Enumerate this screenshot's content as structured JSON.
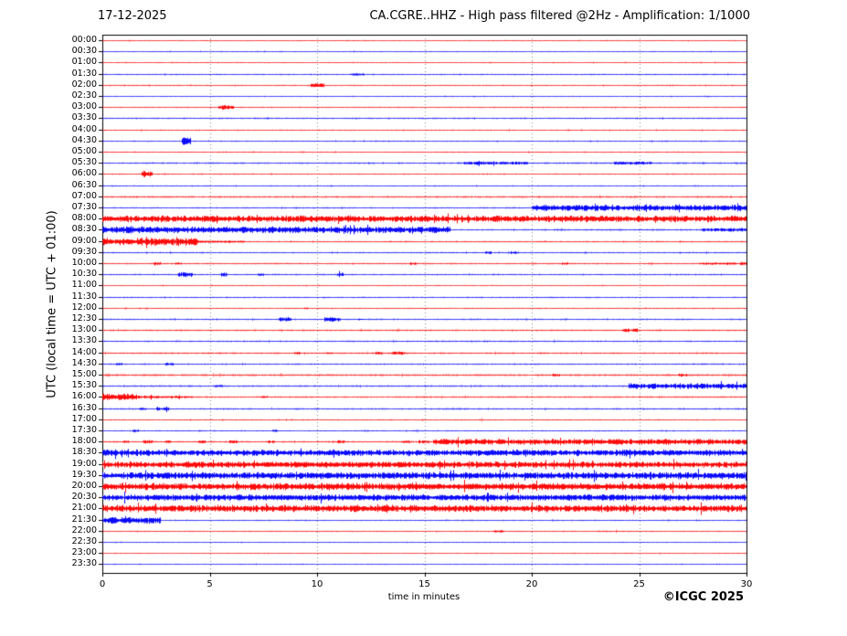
{
  "header": {
    "date": "17-12-2025",
    "title": "CA.CGRE..HHZ - High pass filtered @2Hz - Amplification: 1/1000"
  },
  "axes": {
    "ylabel": "UTC (local time = UTC + 01:00)",
    "xlabel": "time in minutes",
    "xlim": [
      0,
      30
    ],
    "xticks": [
      0,
      5,
      10,
      15,
      20,
      25,
      30
    ],
    "grid_minutes": [
      5,
      10,
      15,
      20,
      25
    ],
    "grid_style": "dashed-vertical"
  },
  "footer": {
    "copyright": "©ICGC 2025"
  },
  "colors": {
    "red": "#ff0000",
    "blue": "#0000ff",
    "grid": "#888888",
    "frame": "#000000",
    "background": "#ffffff"
  },
  "chart_data": {
    "type": "line",
    "subtype": "helicorder-seismogram",
    "station": "CA.CGRE..HHZ",
    "minutes_per_row": 30,
    "row_step": "00:30",
    "amplitude_unit": "px_half_height",
    "rows": [
      {
        "time": "00:00",
        "color": "red",
        "base": 0.5,
        "segments": []
      },
      {
        "time": "00:30",
        "color": "blue",
        "base": 0.5,
        "segments": []
      },
      {
        "time": "01:00",
        "color": "red",
        "base": 0.5,
        "segments": []
      },
      {
        "time": "01:30",
        "color": "blue",
        "base": 0.65,
        "segments": [
          [
            11.5,
            12.2,
            1.1
          ]
        ]
      },
      {
        "time": "02:00",
        "color": "red",
        "base": 0.6,
        "segments": [
          [
            9.7,
            10.3,
            1.8
          ]
        ]
      },
      {
        "time": "02:30",
        "color": "blue",
        "base": 0.5,
        "segments": []
      },
      {
        "time": "03:00",
        "color": "red",
        "base": 0.6,
        "segments": [
          [
            5.4,
            6.1,
            2.2
          ]
        ]
      },
      {
        "time": "03:30",
        "color": "blue",
        "base": 0.7,
        "segments": []
      },
      {
        "time": "04:00",
        "color": "red",
        "base": 0.6,
        "segments": []
      },
      {
        "time": "04:30",
        "color": "blue",
        "base": 0.6,
        "segments": [
          [
            3.7,
            4.1,
            3.4
          ]
        ]
      },
      {
        "time": "05:00",
        "color": "red",
        "base": 0.6,
        "segments": []
      },
      {
        "time": "05:30",
        "color": "blue",
        "base": 0.75,
        "segments": [
          [
            15,
            30,
            0.9
          ],
          [
            16.8,
            19.8,
            1.4
          ],
          [
            23.8,
            25.6,
            1.4
          ]
        ]
      },
      {
        "time": "06:00",
        "color": "red",
        "base": 0.6,
        "segments": [
          [
            1.8,
            2.3,
            3.2
          ]
        ]
      },
      {
        "time": "06:30",
        "color": "blue",
        "base": 0.6,
        "segments": []
      },
      {
        "time": "07:00",
        "color": "red",
        "base": 0.9,
        "segments": []
      },
      {
        "time": "07:30",
        "color": "blue",
        "base": 0.7,
        "segments": [
          [
            20,
            30,
            2.7
          ]
        ]
      },
      {
        "time": "08:00",
        "color": "red",
        "base": 0.7,
        "segments": [
          [
            0,
            30,
            2.8
          ]
        ]
      },
      {
        "time": "08:30",
        "color": "blue",
        "base": 0.7,
        "segments": [
          [
            0,
            16.2,
            2.8
          ],
          [
            21,
            27.9,
            0.9
          ],
          [
            27.9,
            30,
            1.7
          ]
        ]
      },
      {
        "time": "09:00",
        "color": "red",
        "base": 0.7,
        "segments": [
          [
            0,
            4.4,
            3.3
          ],
          [
            4.4,
            6.6,
            1.1
          ]
        ]
      },
      {
        "time": "09:30",
        "color": "blue",
        "base": 0.7,
        "segments": [
          [
            17.8,
            18.1,
            1.3
          ],
          [
            19,
            19.3,
            1.3
          ]
        ]
      },
      {
        "time": "10:00",
        "color": "red",
        "base": 0.75,
        "segments": [
          [
            2.3,
            2.7,
            1.3
          ],
          [
            3.4,
            3.7,
            1.2
          ],
          [
            8,
            8.2,
            1
          ],
          [
            14.3,
            14.6,
            1.3
          ],
          [
            16,
            16.2,
            1
          ],
          [
            21.4,
            21.7,
            1.1
          ],
          [
            25.4,
            25.7,
            1
          ],
          [
            27.8,
            29.6,
            1.2
          ],
          [
            29.7,
            30,
            1.6
          ]
        ]
      },
      {
        "time": "10:30",
        "color": "blue",
        "base": 0.7,
        "segments": [
          [
            3.5,
            4.2,
            2.2
          ],
          [
            5.5,
            5.8,
            1.8
          ],
          [
            7.2,
            7.5,
            1.4
          ],
          [
            8.9,
            9.1,
            1
          ],
          [
            10.9,
            11.2,
            2
          ]
        ]
      },
      {
        "time": "11:00",
        "color": "red",
        "base": 0.5,
        "segments": []
      },
      {
        "time": "11:30",
        "color": "blue",
        "base": 0.65,
        "segments": [
          [
            20.8,
            21.2,
            0.9
          ]
        ]
      },
      {
        "time": "12:00",
        "color": "red",
        "base": 0.6,
        "segments": [
          [
            9.4,
            9.6,
            1.1
          ]
        ]
      },
      {
        "time": "12:30",
        "color": "blue",
        "base": 0.7,
        "segments": [
          [
            8.2,
            8.8,
            2.2
          ],
          [
            10.3,
            11.1,
            2.2
          ],
          [
            11.9,
            12.2,
            1.1
          ],
          [
            21.3,
            21.6,
            1
          ]
        ]
      },
      {
        "time": "13:00",
        "color": "red",
        "base": 0.8,
        "segments": [
          [
            24.2,
            24.9,
            1.8
          ]
        ]
      },
      {
        "time": "13:30",
        "color": "blue",
        "base": 0.75,
        "segments": []
      },
      {
        "time": "14:00",
        "color": "red",
        "base": 0.8,
        "segments": [
          [
            8.9,
            9.2,
            1.2
          ],
          [
            10.4,
            10.7,
            1.2
          ],
          [
            12.7,
            13,
            1.3
          ],
          [
            13.4,
            14.1,
            1.4
          ],
          [
            18.9,
            19.2,
            1
          ]
        ]
      },
      {
        "time": "14:30",
        "color": "blue",
        "base": 0.7,
        "segments": [
          [
            0.6,
            0.9,
            1.2
          ],
          [
            2.9,
            3.3,
            1.4
          ],
          [
            8.9,
            9.2,
            1
          ],
          [
            19.9,
            20.2,
            1
          ],
          [
            27.9,
            28.2,
            1
          ]
        ]
      },
      {
        "time": "15:00",
        "color": "red",
        "base": 1,
        "segments": [
          [
            20.9,
            21.3,
            1.4
          ],
          [
            26.8,
            27.2,
            1.4
          ]
        ]
      },
      {
        "time": "15:30",
        "color": "blue",
        "base": 0.85,
        "segments": [
          [
            5.2,
            5.6,
            1.2
          ],
          [
            24.5,
            30,
            2.4
          ]
        ]
      },
      {
        "time": "16:00",
        "color": "red",
        "base": 0.8,
        "segments": [
          [
            0,
            1.6,
            3.2
          ],
          [
            1.6,
            4.2,
            1.2
          ],
          [
            7.4,
            7.7,
            1.1
          ]
        ]
      },
      {
        "time": "16:30",
        "color": "blue",
        "base": 0.8,
        "segments": [
          [
            1.7,
            2,
            1.2
          ],
          [
            2.5,
            3.1,
            1.5
          ],
          [
            8.9,
            9.2,
            1
          ],
          [
            12.9,
            13.2,
            1
          ],
          [
            15.9,
            17.1,
            1
          ],
          [
            21.9,
            22.2,
            1
          ]
        ]
      },
      {
        "time": "17:00",
        "color": "red",
        "base": 0.6,
        "segments": [
          [
            17.5,
            17.8,
            1
          ]
        ]
      },
      {
        "time": "17:30",
        "color": "blue",
        "base": 0.6,
        "segments": [
          [
            1.4,
            1.7,
            1.2
          ],
          [
            4.4,
            4.7,
            1
          ],
          [
            7.9,
            8.2,
            1.2
          ],
          [
            12.1,
            12.4,
            1
          ],
          [
            14.4,
            14.7,
            1
          ]
        ]
      },
      {
        "time": "18:00",
        "color": "red",
        "base": 0.8,
        "segments": [
          [
            0.9,
            1.2,
            1.4
          ],
          [
            1.9,
            2.3,
            1.6
          ],
          [
            2.9,
            3.2,
            1.4
          ],
          [
            4.4,
            4.8,
            1.5
          ],
          [
            5.9,
            6.3,
            1.4
          ],
          [
            7.7,
            8,
            1.2
          ],
          [
            10.9,
            11.3,
            1.5
          ],
          [
            13.9,
            14.3,
            1.4
          ],
          [
            14.7,
            15.2,
            1.6
          ],
          [
            15.4,
            30,
            2.5
          ]
        ]
      },
      {
        "time": "18:30",
        "color": "blue",
        "base": 0.8,
        "segments": [
          [
            0,
            30,
            2.7
          ]
        ]
      },
      {
        "time": "19:00",
        "color": "red",
        "base": 0.8,
        "segments": [
          [
            0,
            30,
            2.7
          ]
        ]
      },
      {
        "time": "19:30",
        "color": "blue",
        "base": 0.8,
        "segments": [
          [
            0,
            30,
            3
          ]
        ]
      },
      {
        "time": "20:00",
        "color": "red",
        "base": 0.8,
        "segments": [
          [
            0,
            30,
            3
          ]
        ]
      },
      {
        "time": "20:30",
        "color": "blue",
        "base": 0.8,
        "segments": [
          [
            0,
            30,
            2.7
          ]
        ]
      },
      {
        "time": "21:00",
        "color": "red",
        "base": 0.8,
        "segments": [
          [
            0,
            30,
            3
          ]
        ]
      },
      {
        "time": "21:30",
        "color": "blue",
        "base": 0.6,
        "segments": [
          [
            0,
            2.7,
            2.8
          ],
          [
            20.9,
            21.2,
            1
          ]
        ]
      },
      {
        "time": "22:00",
        "color": "red",
        "base": 0.6,
        "segments": [
          [
            18.2,
            18.7,
            1.1
          ],
          [
            23,
            24.8,
            0.85
          ]
        ]
      },
      {
        "time": "22:30",
        "color": "blue",
        "base": 0.5,
        "segments": []
      },
      {
        "time": "23:00",
        "color": "red",
        "base": 0.5,
        "segments": []
      },
      {
        "time": "23:30",
        "color": "blue",
        "base": 0.5,
        "segments": []
      }
    ]
  }
}
